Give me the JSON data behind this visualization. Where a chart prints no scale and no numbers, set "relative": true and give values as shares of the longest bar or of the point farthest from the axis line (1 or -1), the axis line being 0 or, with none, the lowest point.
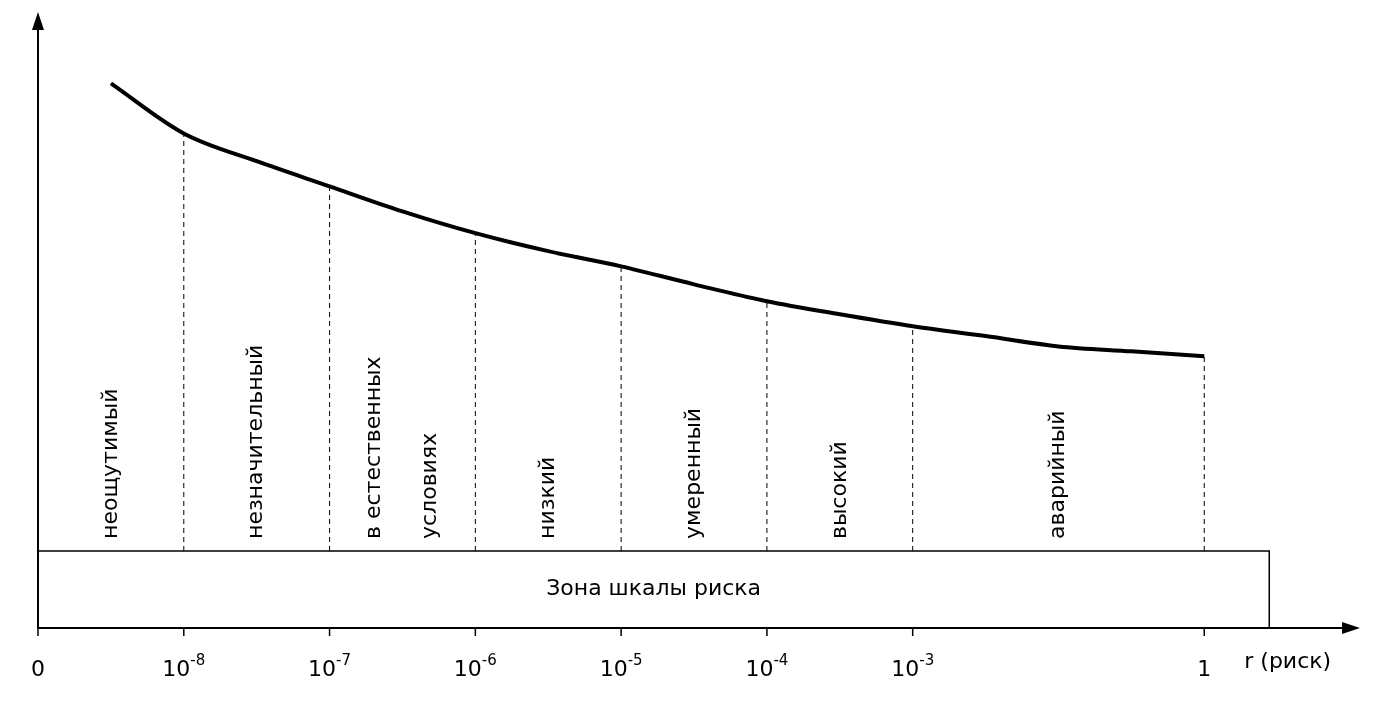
{
  "chart_data": {
    "type": "line",
    "xlabel": "r (риск)",
    "relative": true,
    "legend": false,
    "marker": "none",
    "line_style": "solid",
    "categories": [
      "0",
      null,
      "10$^{-8}$",
      null,
      "10$^{-7}$",
      null,
      "10$^{-6}$",
      null,
      "10$^{-5}$",
      null,
      "10$^{-4}$",
      null,
      "10$^{-3}$",
      null,
      null,
      null,
      "1"
    ],
    "series": [
      {
        "color": "#000000",
        "values": [
          null,
          1.0,
          0.908,
          0.857,
          0.811,
          0.765,
          0.725,
          0.692,
          0.664,
          0.631,
          0.6,
          0.576,
          0.554,
          0.536,
          0.517,
          0.508,
          0.499
        ]
      }
    ],
    "ref_lines": [
      {
        "axis": "x",
        "value": "10$^{-8}$",
        "line_style": "dashed"
      },
      {
        "axis": "x",
        "value": "10$^{-7}$",
        "line_style": "dashed"
      },
      {
        "axis": "x",
        "value": "10$^{-6}$",
        "line_style": "dashed"
      },
      {
        "axis": "x",
        "value": "10$^{-5}$",
        "line_style": "dashed"
      },
      {
        "axis": "x",
        "value": "10$^{-4}$",
        "line_style": "dashed"
      },
      {
        "axis": "x",
        "value": "10$^{-3}$",
        "line_style": "dashed"
      },
      {
        "axis": "x",
        "value": "1",
        "line_style": "dashed"
      }
    ],
    "annotations": [
      "неощутимый",
      "незначительный",
      "в естественных условиях",
      "низкий",
      "умеренный",
      "высокий",
      "аварийный",
      "Зона шкалы риска"
    ]
  }
}
